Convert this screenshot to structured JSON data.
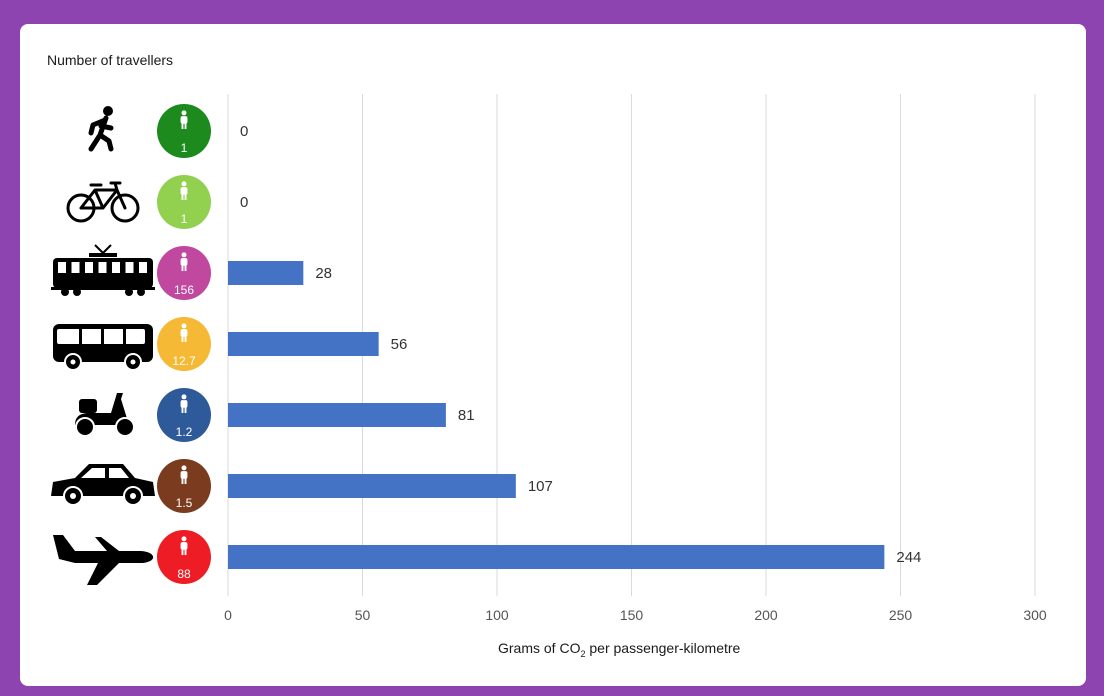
{
  "card": {
    "travellers_title": "Number of travellers"
  },
  "chart_data": {
    "type": "bar",
    "orientation": "horizontal",
    "categories": [
      "walking-icon",
      "bicycle-icon",
      "tram-icon",
      "bus-icon",
      "scooter-icon",
      "car-icon",
      "airplane-icon"
    ],
    "values": [
      0,
      0,
      28,
      56,
      81,
      107,
      244
    ],
    "data_labels": [
      "0",
      "0",
      "28",
      "56",
      "81",
      "107",
      "244"
    ],
    "travellers": [
      "1",
      "1",
      "156",
      "12.7",
      "1.2",
      "1.5",
      "88"
    ],
    "traveller_colors": [
      "#1c8a1c",
      "#92d050",
      "#c0489f",
      "#f5b935",
      "#2f5a9a",
      "#7a3b1e",
      "#ee1c25"
    ],
    "bar_color": "#4472c4",
    "xlabel_prefix": "Grams of CO",
    "xlabel_sub": "2",
    "xlabel_suffix": " per passenger-kilometre",
    "xlim": [
      0,
      300
    ],
    "xticks": [
      0,
      50,
      100,
      150,
      200,
      250,
      300
    ],
    "xtick_labels": [
      "0",
      "50",
      "100",
      "150",
      "200",
      "250",
      "300"
    ],
    "grid": true
  }
}
